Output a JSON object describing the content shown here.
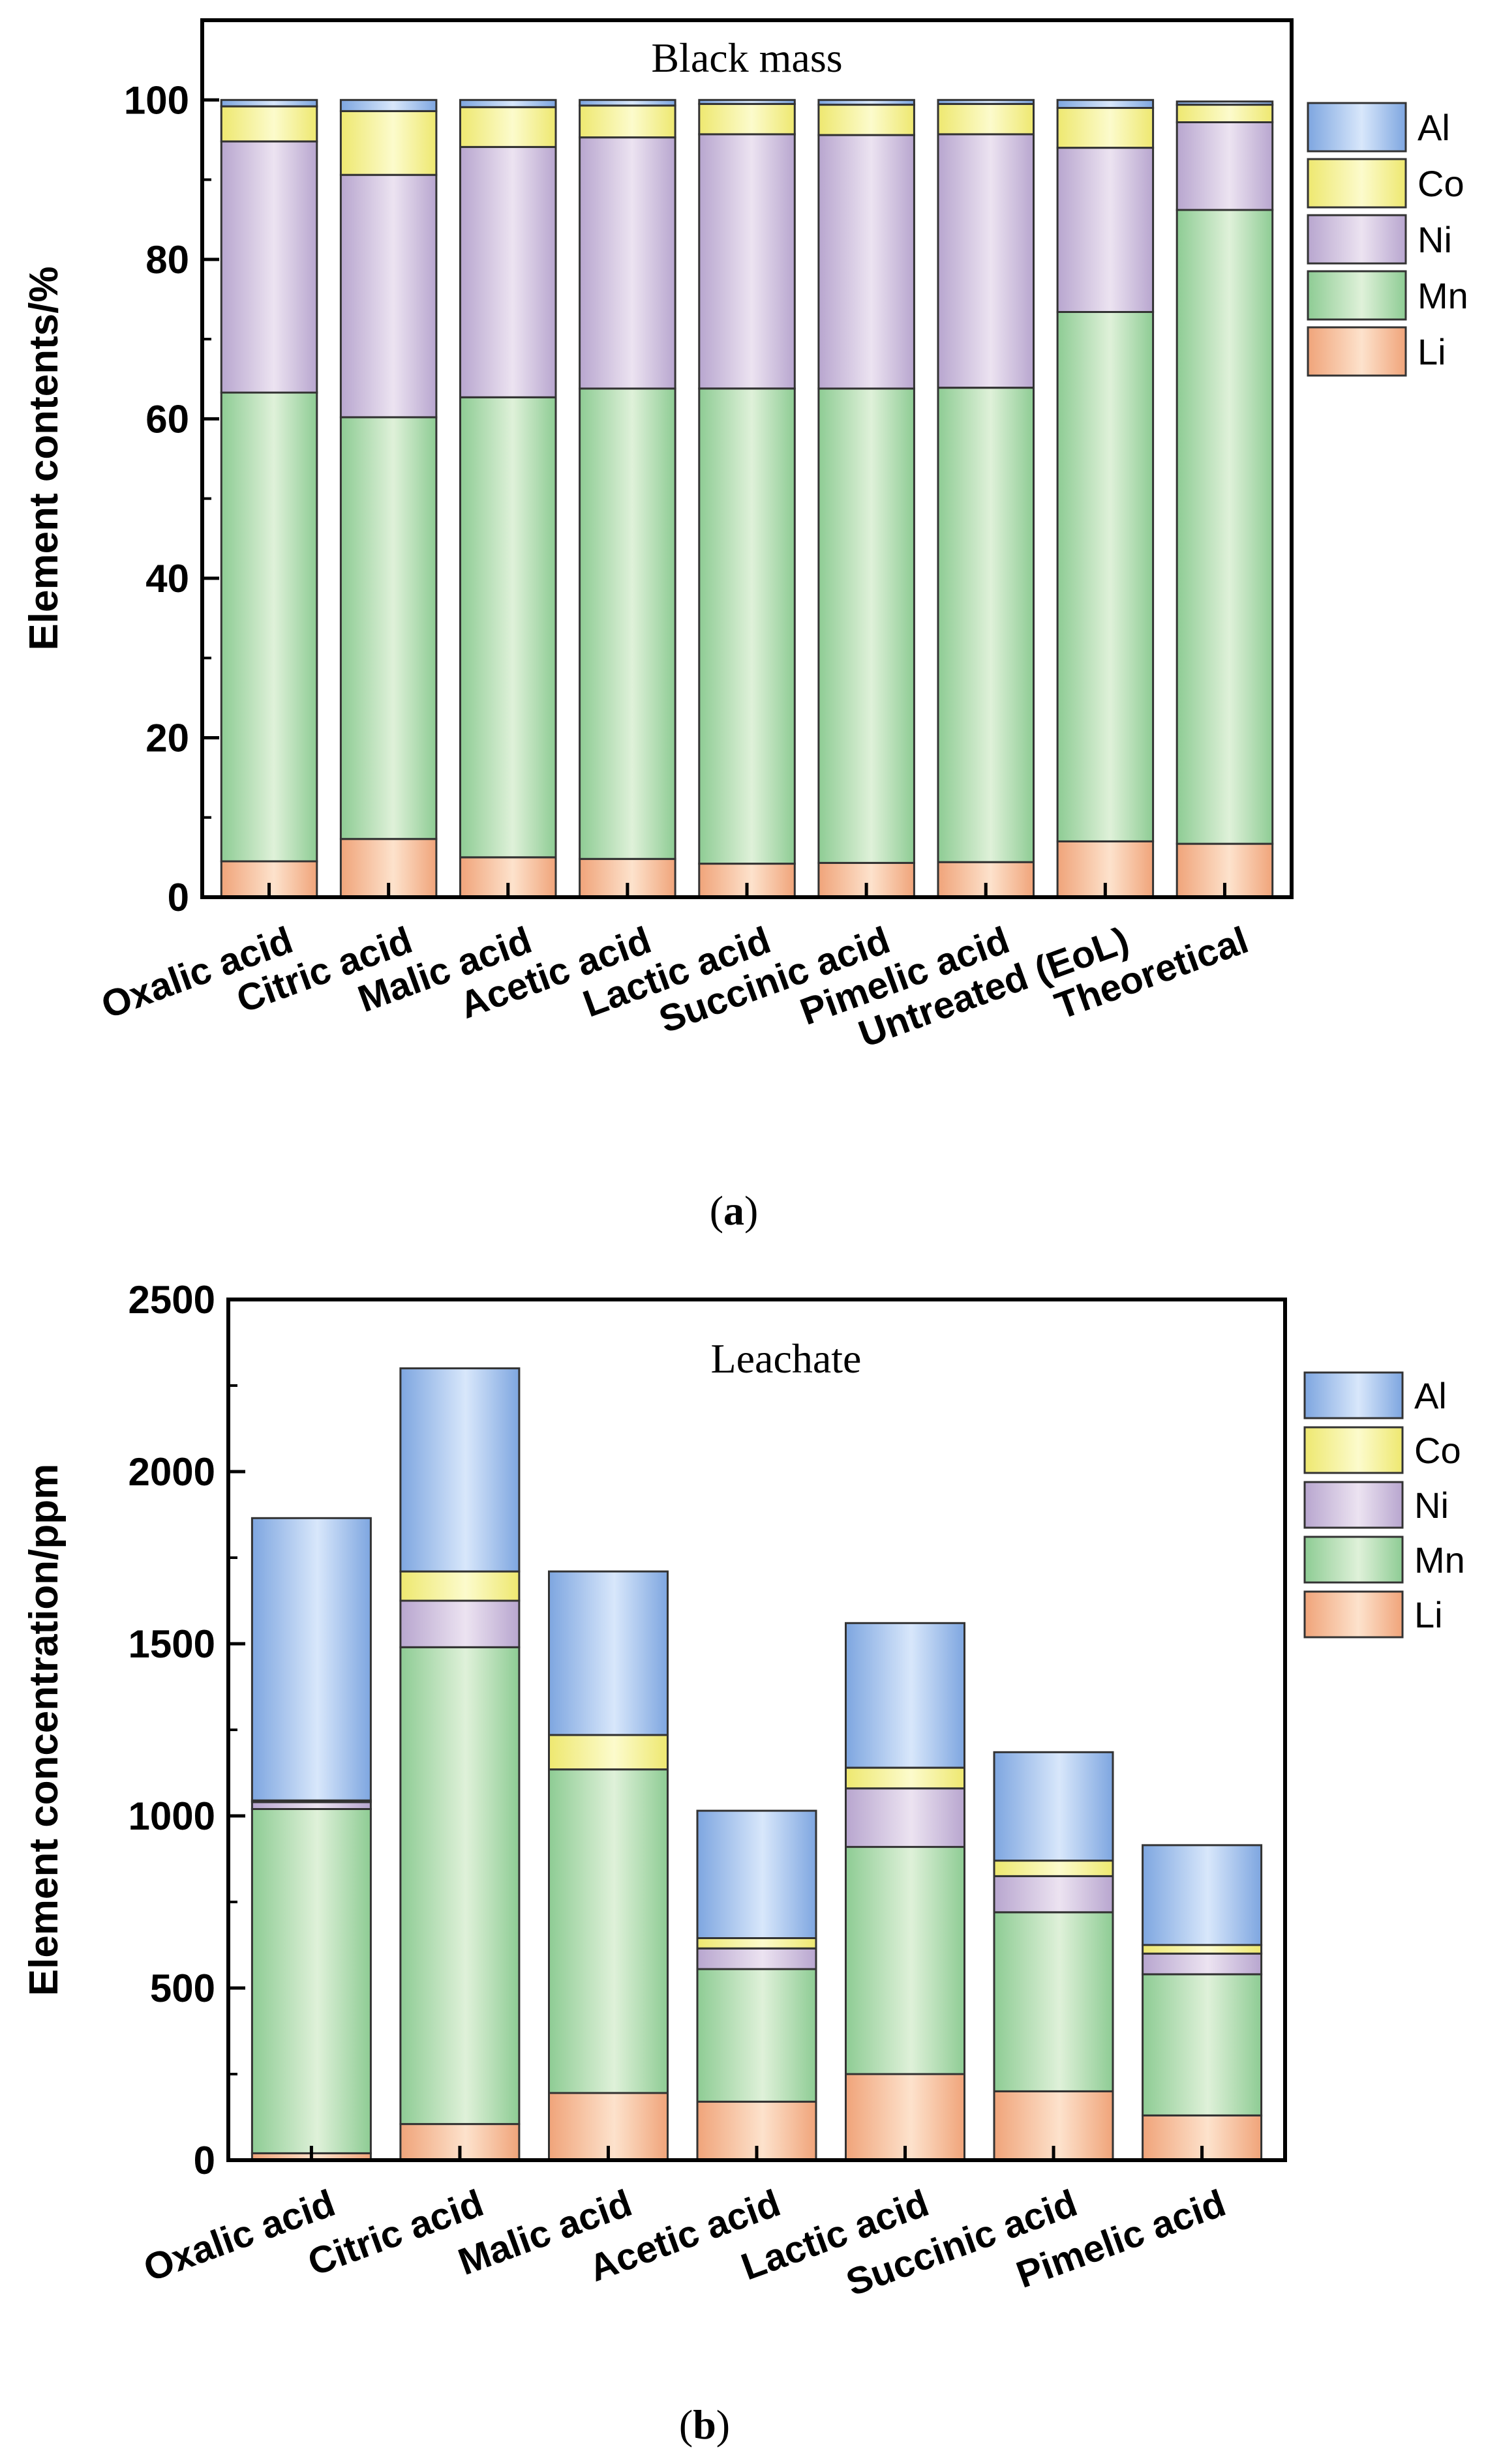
{
  "series_styles": {
    "Li": {
      "light": "#fde2cc",
      "dark": "#f0a47a"
    },
    "Mn": {
      "light": "#dff1d9",
      "dark": "#8ecc94"
    },
    "Ni": {
      "light": "#ece3f1",
      "dark": "#b8a6cf"
    },
    "Co": {
      "light": "#fcfbcc",
      "dark": "#eee870"
    },
    "Al": {
      "light": "#d8e7fb",
      "dark": "#7ea6e0"
    }
  },
  "chart_data": [
    {
      "panel": "a",
      "panel_label": "(a)",
      "type": "bar",
      "stacked": true,
      "title": "Black mass",
      "xlabel": "",
      "ylabel": "Element contents/%",
      "ylim": [
        0,
        110
      ],
      "yticks": [
        0,
        20,
        40,
        60,
        80,
        100
      ],
      "legend_position": "right",
      "legend_order": [
        "Al",
        "Co",
        "Ni",
        "Mn",
        "Li"
      ],
      "categories": [
        "Oxalic acid",
        "Citric acid",
        "Malic acid",
        "Acetic acid",
        "Lactic acid",
        "Succinic acid",
        "Pimelic acid",
        "Untreated (EoL)",
        "Theoretical"
      ],
      "series": [
        {
          "name": "Li",
          "values": [
            4.5,
            7.3,
            5.0,
            4.8,
            4.2,
            4.3,
            4.4,
            7.0,
            6.7
          ]
        },
        {
          "name": "Mn",
          "values": [
            58.8,
            52.9,
            57.7,
            59.0,
            59.6,
            59.5,
            59.5,
            66.4,
            79.5
          ]
        },
        {
          "name": "Ni",
          "values": [
            31.5,
            30.4,
            31.4,
            31.5,
            31.9,
            31.8,
            31.8,
            20.6,
            11.0
          ]
        },
        {
          "name": "Co",
          "values": [
            4.4,
            8.0,
            5.0,
            4.0,
            3.8,
            3.8,
            3.8,
            5.0,
            2.2
          ]
        },
        {
          "name": "Al",
          "values": [
            0.8,
            1.4,
            0.9,
            0.7,
            0.5,
            0.6,
            0.5,
            1.0,
            0.4
          ]
        }
      ]
    },
    {
      "panel": "b",
      "panel_label": "(b)",
      "type": "bar",
      "stacked": true,
      "title": "Leachate",
      "xlabel": "",
      "ylabel": "Element concentration/ppm",
      "ylim": [
        0,
        2500
      ],
      "yticks": [
        0,
        500,
        1000,
        1500,
        2000,
        2500
      ],
      "legend_position": "right",
      "legend_order": [
        "Al",
        "Co",
        "Ni",
        "Mn",
        "Li"
      ],
      "categories": [
        "Oxalic acid",
        "Citric acid",
        "Malic acid",
        "Acetic acid",
        "Lactic acid",
        "Succinic acid",
        "Pimelic acid"
      ],
      "series": [
        {
          "name": "Li",
          "values": [
            20,
            105,
            195,
            170,
            250,
            200,
            130
          ]
        },
        {
          "name": "Mn",
          "values": [
            1000,
            1385,
            940,
            385,
            660,
            520,
            410
          ]
        },
        {
          "name": "Ni",
          "values": [
            20,
            135,
            0,
            60,
            170,
            105,
            60
          ]
        },
        {
          "name": "Co",
          "values": [
            5,
            85,
            100,
            30,
            60,
            45,
            25
          ]
        },
        {
          "name": "Al",
          "values": [
            820,
            590,
            475,
            370,
            420,
            315,
            290
          ]
        }
      ]
    }
  ]
}
